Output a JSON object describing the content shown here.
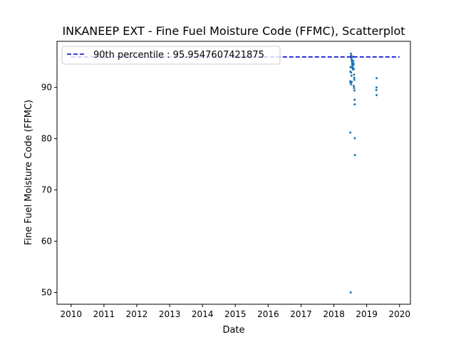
{
  "chart_data": {
    "type": "scatter",
    "title": "INKANEEP EXT - Fine Fuel Moisture Code (FFMC), Scatterplot",
    "xlabel": "Date",
    "ylabel": "Fine Fuel Moisture Code (FFMC)",
    "x_ticks": [
      "2010",
      "2011",
      "2012",
      "2013",
      "2014",
      "2015",
      "2016",
      "2017",
      "2018",
      "2019",
      "2020"
    ],
    "y_ticks": [
      "50",
      "60",
      "70",
      "80",
      "90"
    ],
    "xlim": [
      "2009-07-28",
      "2020-05-01"
    ],
    "ylim": [
      47.7,
      99.0
    ],
    "marker_color": "#1f77b4",
    "reference_line": {
      "label": "90th percentile : 95.9547607421875",
      "value": 95.9547607421875,
      "x_start": "2010-01-01",
      "x_end": "2020-01-01",
      "color": "#0000cd",
      "style": "dashed"
    },
    "legend": {
      "position": "top-left"
    },
    "grid": false,
    "series": [
      {
        "points": [
          {
            "x": "2018-07-10",
            "y": 96.6
          },
          {
            "x": "2018-07-12",
            "y": 96.2
          },
          {
            "x": "2018-07-14",
            "y": 95.9
          },
          {
            "x": "2018-07-16",
            "y": 95.7
          },
          {
            "x": "2018-07-18",
            "y": 95.4
          },
          {
            "x": "2018-07-20",
            "y": 95.1
          },
          {
            "x": "2018-07-22",
            "y": 94.9
          },
          {
            "x": "2018-07-24",
            "y": 94.6
          },
          {
            "x": "2018-07-26",
            "y": 94.3
          },
          {
            "x": "2018-07-28",
            "y": 94.1
          },
          {
            "x": "2018-07-30",
            "y": 93.8
          },
          {
            "x": "2018-08-01",
            "y": 93.5
          },
          {
            "x": "2018-08-03",
            "y": 96.0
          },
          {
            "x": "2018-08-05",
            "y": 95.2
          },
          {
            "x": "2018-08-07",
            "y": 94.7
          },
          {
            "x": "2018-07-06",
            "y": 94.0
          },
          {
            "x": "2018-07-08",
            "y": 93.9
          },
          {
            "x": "2018-07-04",
            "y": 93.1
          },
          {
            "x": "2018-07-11",
            "y": 92.9
          },
          {
            "x": "2018-07-15",
            "y": 92.3
          },
          {
            "x": "2018-08-09",
            "y": 94.5
          },
          {
            "x": "2018-08-11",
            "y": 93.6
          },
          {
            "x": "2018-08-13",
            "y": 92.5
          },
          {
            "x": "2018-08-15",
            "y": 91.9
          },
          {
            "x": "2018-08-17",
            "y": 91.5
          },
          {
            "x": "2018-07-02",
            "y": 91.2
          },
          {
            "x": "2018-07-05",
            "y": 90.9
          },
          {
            "x": "2018-07-13",
            "y": 90.6
          },
          {
            "x": "2018-07-19",
            "y": 91.1
          },
          {
            "x": "2018-08-10",
            "y": 90.3
          },
          {
            "x": "2018-08-14",
            "y": 89.9
          },
          {
            "x": "2018-08-18",
            "y": 89.4
          },
          {
            "x": "2018-08-20",
            "y": 87.6
          },
          {
            "x": "2018-08-21",
            "y": 86.7
          },
          {
            "x": "2018-07-03",
            "y": 81.2
          },
          {
            "x": "2018-08-22",
            "y": 80.1
          },
          {
            "x": "2018-08-23",
            "y": 76.8
          },
          {
            "x": "2018-07-07",
            "y": 50.0
          },
          {
            "x": "2019-04-22",
            "y": 91.8
          },
          {
            "x": "2019-04-20",
            "y": 90.0
          },
          {
            "x": "2019-04-18",
            "y": 89.5
          },
          {
            "x": "2019-04-21",
            "y": 88.5
          }
        ]
      }
    ]
  }
}
